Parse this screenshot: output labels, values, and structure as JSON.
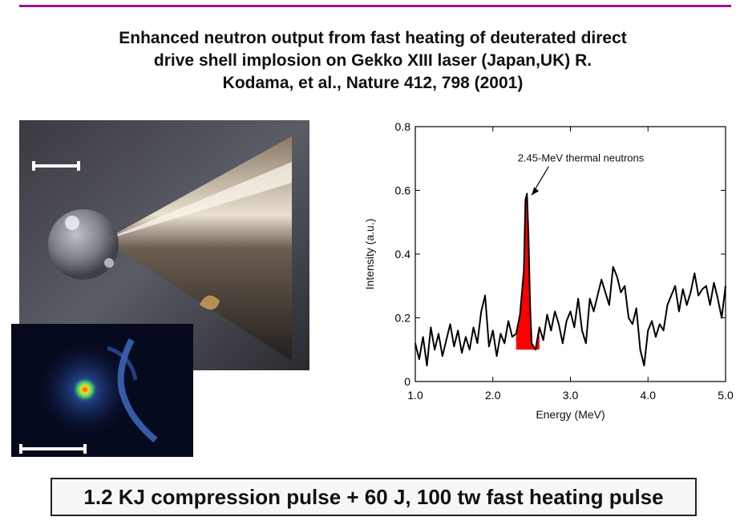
{
  "slide": {
    "title_lines": [
      "Enhanced neutron output from fast heating of deuterated direct",
      "drive  shell implosion on Gekko XIII laser (Japan,UK) R.",
      "Kodama, et al., Nature 412, 798 (2001)"
    ],
    "caption": "1.2 KJ compression pulse + 60 J, 100 tw fast heating pulse"
  },
  "colors": {
    "accent_rule": "#a0128c",
    "peak_fill": "#ff0000",
    "trace": "#000000"
  },
  "chart_data": {
    "type": "line",
    "title": "",
    "xlabel": "Energy (MeV)",
    "ylabel": "Intensity (a.u.)",
    "xlim": [
      1.0,
      5.0
    ],
    "ylim": [
      0,
      0.8
    ],
    "x_ticks": [
      "1.0",
      "2.0",
      "3.0",
      "4.0",
      "5.0"
    ],
    "y_ticks": [
      "0",
      "0.2",
      "0.4",
      "0.6",
      "0.8"
    ],
    "annotation": "2.45-MeV thermal neutrons",
    "peak_highlight_range": [
      2.3,
      2.6
    ],
    "series": [
      {
        "x": [
          1.0,
          1.05,
          1.1,
          1.15,
          1.2,
          1.25,
          1.3,
          1.35,
          1.4,
          1.45,
          1.5,
          1.55,
          1.6,
          1.65,
          1.7,
          1.75,
          1.8,
          1.85,
          1.9,
          1.95,
          2.0,
          2.05,
          2.1,
          2.15,
          2.2,
          2.25,
          2.3,
          2.35,
          2.4,
          2.42,
          2.44,
          2.46,
          2.48,
          2.5,
          2.55,
          2.6,
          2.65,
          2.7,
          2.75,
          2.8,
          2.85,
          2.9,
          2.95,
          3.0,
          3.05,
          3.1,
          3.15,
          3.2,
          3.25,
          3.3,
          3.35,
          3.4,
          3.45,
          3.5,
          3.55,
          3.6,
          3.65,
          3.7,
          3.75,
          3.8,
          3.85,
          3.9,
          3.95,
          4.0,
          4.05,
          4.1,
          4.15,
          4.2,
          4.25,
          4.3,
          4.35,
          4.4,
          4.45,
          4.5,
          4.55,
          4.6,
          4.65,
          4.7,
          4.75,
          4.8,
          4.85,
          4.9,
          4.95,
          5.0
        ],
        "values": [
          0.12,
          0.07,
          0.14,
          0.05,
          0.17,
          0.1,
          0.15,
          0.08,
          0.13,
          0.18,
          0.11,
          0.16,
          0.09,
          0.14,
          0.1,
          0.17,
          0.12,
          0.22,
          0.27,
          0.11,
          0.16,
          0.08,
          0.15,
          0.12,
          0.19,
          0.14,
          0.15,
          0.21,
          0.35,
          0.57,
          0.59,
          0.45,
          0.24,
          0.12,
          0.1,
          0.17,
          0.13,
          0.21,
          0.16,
          0.22,
          0.18,
          0.12,
          0.19,
          0.22,
          0.17,
          0.26,
          0.16,
          0.12,
          0.26,
          0.22,
          0.27,
          0.32,
          0.28,
          0.24,
          0.36,
          0.33,
          0.28,
          0.3,
          0.2,
          0.18,
          0.23,
          0.1,
          0.05,
          0.16,
          0.19,
          0.14,
          0.18,
          0.16,
          0.24,
          0.27,
          0.3,
          0.22,
          0.29,
          0.24,
          0.28,
          0.34,
          0.27,
          0.29,
          0.3,
          0.24,
          0.31,
          0.26,
          0.2,
          0.3
        ]
      }
    ]
  }
}
